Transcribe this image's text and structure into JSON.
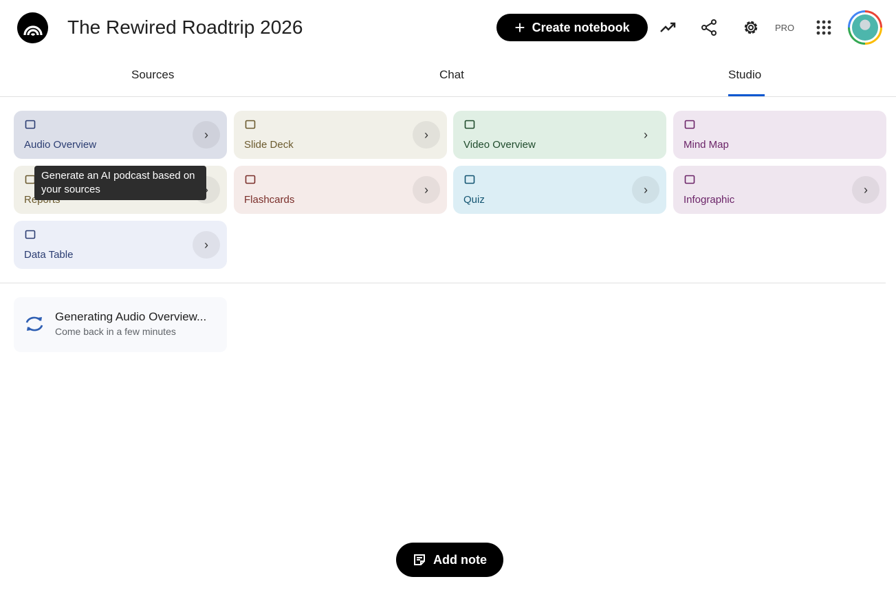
{
  "header": {
    "title": "The Rewired Roadtrip 2026",
    "create_label": "Create notebook",
    "pro_label": "PRO"
  },
  "tabs": [
    {
      "label": "Sources"
    },
    {
      "label": "Chat"
    },
    {
      "label": "Studio",
      "active": true
    }
  ],
  "accent": "#0b57d0",
  "studio": {
    "cards": [
      {
        "label": "Audio Overview",
        "icon": "audio-waveform-sparkle-icon",
        "bg": "#dcdfe9",
        "color": "#2b3d72"
      },
      {
        "label": "Slide Deck",
        "icon": "slides-icon",
        "bg": "#f1f0e8",
        "color": "#6b5a2e"
      },
      {
        "label": "Video Overview",
        "icon": "video-icon",
        "bg": "#e0efe4",
        "color": "#1f4b2c"
      },
      {
        "label": "Mind Map",
        "icon": "mind-map-icon",
        "bg": "#efe6f0",
        "color": "#6b2468"
      },
      {
        "label": "Reports",
        "icon": "reports-icon",
        "bg": "#f1f0e8",
        "color": "#6b5a2e"
      },
      {
        "label": "Flashcards",
        "icon": "flashcards-icon",
        "bg": "#f5ebe9",
        "color": "#7a2e2a"
      },
      {
        "label": "Quiz",
        "icon": "quiz-icon",
        "bg": "#dceef5",
        "color": "#145572"
      },
      {
        "label": "Infographic",
        "icon": "infographic-icon",
        "bg": "#efe6ef",
        "color": "#6b2468"
      },
      {
        "label": "Data Table",
        "icon": "table-icon",
        "bg": "#eceff8",
        "color": "#2b3d72"
      }
    ],
    "tooltip": "Generate an AI podcast based on your sources",
    "generating": {
      "title": "Generating Audio Overview...",
      "subtitle": "Come back in a few minutes"
    }
  },
  "add_note_label": "Add note"
}
